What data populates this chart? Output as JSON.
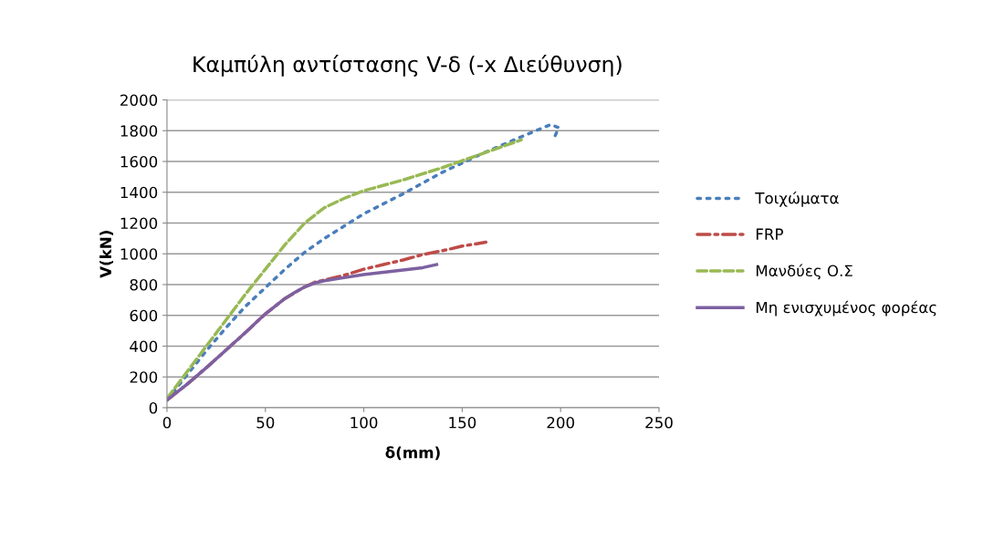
{
  "chart_data": {
    "type": "line",
    "title": "Καμπύλη αντίστασης V-δ (-x Διεύθυνση)",
    "xlabel": "δ(mm)",
    "ylabel": "V(kN)",
    "series": [
      {
        "name": "Τοιχώματα",
        "color": "#4a7ebb",
        "line_style": "dotted",
        "x": [
          0,
          10,
          20,
          30,
          40,
          50,
          60,
          70,
          80,
          90,
          100,
          120,
          140,
          160,
          180,
          195,
          199,
          197
        ],
        "values": [
          50,
          210,
          370,
          520,
          660,
          780,
          900,
          1010,
          1100,
          1180,
          1260,
          1390,
          1530,
          1650,
          1760,
          1840,
          1820,
          1760
        ]
      },
      {
        "name": "FRP",
        "color": "#be4b48",
        "line_style": "dashdot",
        "x": [
          0,
          10,
          20,
          30,
          40,
          50,
          60,
          70,
          75,
          80,
          90,
          100,
          110,
          120,
          130,
          140,
          150,
          162
        ],
        "values": [
          50,
          150,
          260,
          375,
          490,
          610,
          710,
          785,
          815,
          830,
          860,
          900,
          930,
          960,
          995,
          1020,
          1050,
          1075
        ]
      },
      {
        "name": "Μανδύες Ο.Σ",
        "color": "#98b954",
        "line_style": "dashed",
        "x": [
          0,
          10,
          20,
          30,
          40,
          50,
          60,
          70,
          80,
          90,
          100,
          120,
          140,
          160,
          180
        ],
        "values": [
          60,
          230,
          400,
          570,
          740,
          900,
          1060,
          1200,
          1300,
          1360,
          1410,
          1480,
          1560,
          1650,
          1740
        ]
      },
      {
        "name": "Μη ενισχυμένος φορέας",
        "color": "#7d60a0",
        "line_style": "solid",
        "x": [
          0,
          10,
          20,
          30,
          40,
          50,
          60,
          65,
          70,
          75,
          80,
          90,
          100,
          110,
          120,
          130,
          137
        ],
        "values": [
          50,
          150,
          260,
          375,
          490,
          610,
          710,
          750,
          785,
          810,
          825,
          845,
          865,
          880,
          895,
          910,
          930
        ]
      }
    ],
    "xlim": [
      0,
      250
    ],
    "xticks": [
      0,
      50,
      100,
      150,
      200,
      250
    ],
    "ylim": [
      0,
      2000
    ],
    "yticks": [
      0,
      200,
      400,
      600,
      800,
      1000,
      1200,
      1400,
      1600,
      1800,
      2000
    ],
    "grid": "y",
    "legend": "right",
    "marker": "none"
  }
}
